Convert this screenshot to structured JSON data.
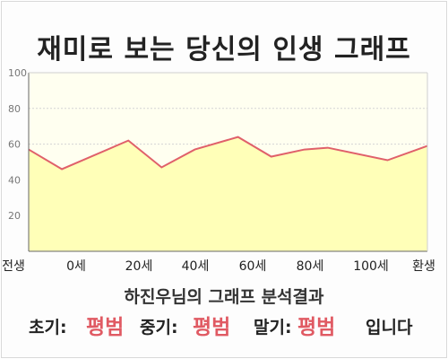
{
  "title": "재미로 보는 당신의 인생 그래프",
  "chart_data": {
    "type": "area",
    "categories": [
      "전생",
      "0세",
      "20세",
      "40세",
      "60세",
      "80세",
      "100세",
      "환생"
    ],
    "x": [
      -10,
      0,
      20,
      30,
      40,
      53,
      63,
      73,
      80,
      98,
      110
    ],
    "values": [
      57,
      46,
      62,
      47,
      57,
      64,
      53,
      57,
      58,
      51,
      59
    ],
    "xlim": [
      -10,
      110
    ],
    "ylim": [
      0,
      100
    ],
    "y_ticks": [
      20,
      40,
      60,
      80,
      100
    ],
    "grid": true,
    "line_color": "#e0606a",
    "fill_color": "#ffffb8",
    "plot_background": "#fffff0"
  },
  "summary": "하진우님의 그래프 분석결과",
  "result": {
    "early_label": "초기:",
    "early_value": "평범",
    "middle_label": "중기:",
    "middle_value": "평범",
    "late_label": "말기:",
    "late_value": "평범",
    "ending": "입니다"
  },
  "colors": {
    "accent": "#e05a63",
    "text": "#222222"
  }
}
